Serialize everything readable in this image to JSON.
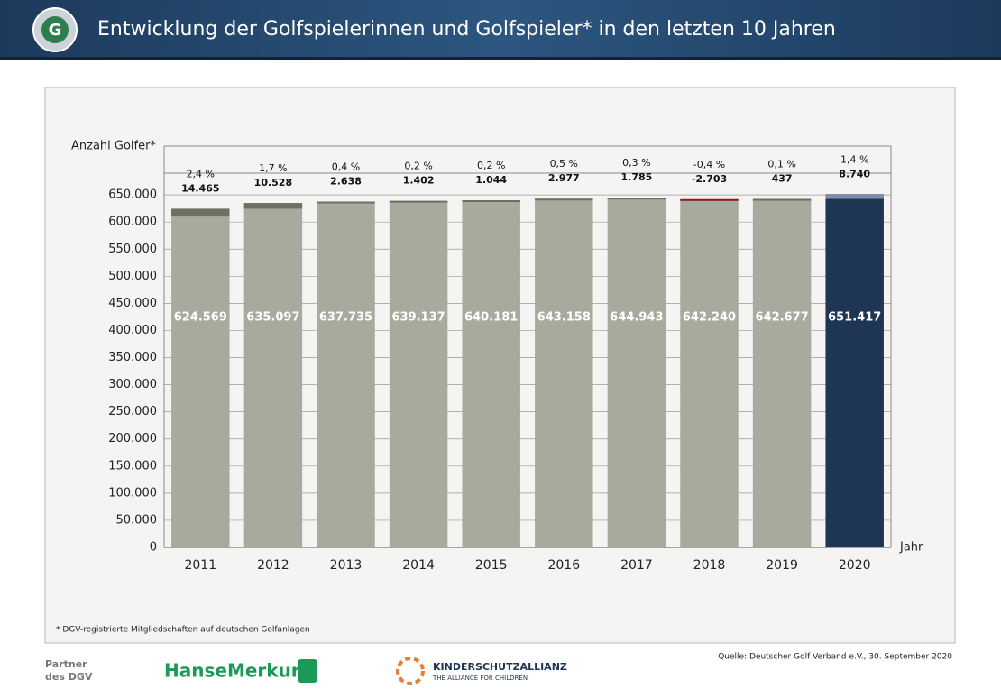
{
  "header": {
    "title": "Entwicklung der Golfspielerinnen und Golfspieler* in den letzten 10 Jahren"
  },
  "chart_data": {
    "type": "bar",
    "y_label": "Anzahl Golfer*",
    "x_label": "Jahr",
    "categories": [
      "2011",
      "2012",
      "2013",
      "2014",
      "2015",
      "2016",
      "2017",
      "2018",
      "2019",
      "2020"
    ],
    "values": [
      624569,
      635097,
      637735,
      639137,
      640181,
      643158,
      644943,
      642240,
      642677,
      651417
    ],
    "value_labels": [
      "624.569",
      "635.097",
      "637.735",
      "639.137",
      "640.181",
      "643.158",
      "644.943",
      "642.240",
      "642.677",
      "651.417"
    ],
    "colors": [
      "#a9aa9e",
      "#a9aa9e",
      "#a9aa9e",
      "#a9aa9e",
      "#a9aa9e",
      "#a9aa9e",
      "#a9aa9e",
      "#a9aa9e",
      "#a9aa9e",
      "#1f3554"
    ],
    "change": {
      "values": [
        14465,
        10528,
        2638,
        1402,
        1044,
        2977,
        1785,
        -2703,
        437,
        8740
      ],
      "value_labels": [
        "14.465",
        "10.528",
        "2.638",
        "1.402",
        "1.044",
        "2.977",
        "1.785",
        "-2.703",
        "437",
        "8.740"
      ],
      "colors": [
        "#6f7064",
        "#6f7064",
        "#6f7064",
        "#6f7064",
        "#6f7064",
        "#6f7064",
        "#6f7064",
        "#8b1c1c",
        "#6f7064",
        "#7d8fae"
      ]
    },
    "change_pct": {
      "values": [
        2.4,
        1.7,
        0.4,
        0.2,
        0.2,
        0.5,
        0.3,
        -0.4,
        0.1,
        1.4
      ],
      "value_labels": [
        "2,4 %",
        "1,7 %",
        "0,4 %",
        "0,2 %",
        "0,2 %",
        "0,5 %",
        "0,3 %",
        "-0,4 %",
        "0,1 %",
        "1,4 %"
      ]
    },
    "ylim": [
      0,
      740000
    ],
    "yticks": [
      0,
      {
        "value": 50000,
        "label": "50.000"
      },
      {
        "value": 100000,
        "label": "100.000"
      },
      {
        "value": 150000,
        "label": "150.000"
      },
      {
        "value": 200000,
        "label": "200.000"
      },
      {
        "value": 250000,
        "label": "250.000"
      },
      {
        "value": 300000,
        "label": "300.000"
      },
      {
        "value": 350000,
        "label": "350.000"
      },
      {
        "value": 400000,
        "label": "400.000"
      },
      {
        "value": 450000,
        "label": "450.000"
      },
      {
        "value": 500000,
        "label": "500.000"
      },
      {
        "value": 550000,
        "label": "550.000"
      },
      {
        "value": 600000,
        "label": "600.000"
      },
      {
        "value": 650000,
        "label": "650.000"
      }
    ],
    "grid": true
  },
  "footnote": "* DGV-registrierte Mitgliedschaften auf deutschen Golfanlagen",
  "source": "Quelle: Deutscher Golf Verband e.V., 30. September 2020",
  "partners": {
    "label_line1": "Partner",
    "label_line2": "des DGV",
    "partner1": "HanseMerkur",
    "partner2": "KINDERSCHUTZALLIANZ",
    "partner2_sub": "THE ALLIANCE FOR CHILDREN"
  }
}
